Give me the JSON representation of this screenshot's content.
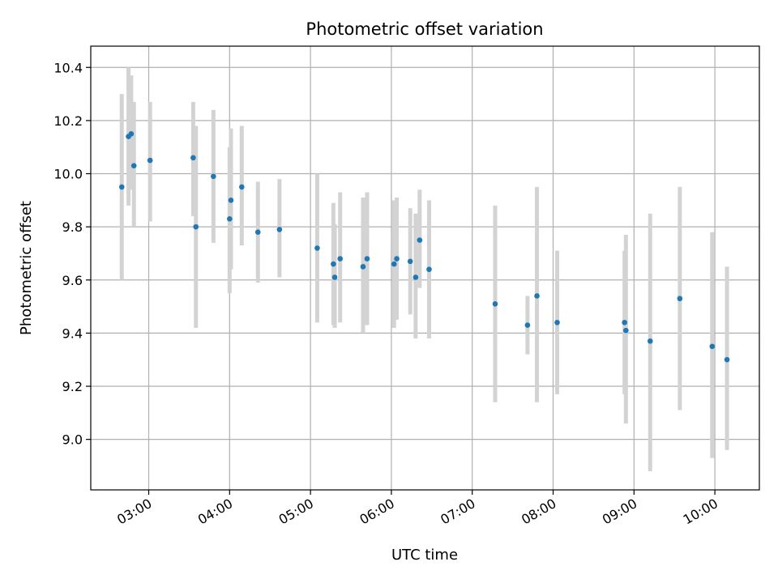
{
  "chart_data": {
    "type": "scatter",
    "title": "Photometric offset variation",
    "xlabel": "UTC time",
    "ylabel": "Photometric offset",
    "x_unit": "UTC time (HH:MM)",
    "xlim": [
      "02:17",
      "10:33"
    ],
    "ylim": [
      8.81,
      10.48
    ],
    "x_ticks": [
      "03:00",
      "04:00",
      "05:00",
      "06:00",
      "07:00",
      "08:00",
      "09:00",
      "10:00"
    ],
    "y_ticks": [
      "9.0",
      "9.2",
      "9.4",
      "9.6",
      "9.8",
      "10.0",
      "10.2",
      "10.4"
    ],
    "grid": true,
    "error_bars": true,
    "colors": {
      "points": "#1f77b4",
      "error_bars": "#d3d3d3",
      "grid": "#b0b0b0"
    },
    "points": [
      {
        "x": "02:40",
        "y": 9.95,
        "lo": 9.6,
        "hi": 10.3
      },
      {
        "x": "02:45",
        "y": 10.14,
        "lo": 9.88,
        "hi": 10.4
      },
      {
        "x": "02:47",
        "y": 10.15,
        "lo": 9.94,
        "hi": 10.37
      },
      {
        "x": "02:49",
        "y": 10.03,
        "lo": 9.8,
        "hi": 10.27
      },
      {
        "x": "03:01",
        "y": 10.05,
        "lo": 9.82,
        "hi": 10.27
      },
      {
        "x": "03:33",
        "y": 10.06,
        "lo": 9.84,
        "hi": 10.27
      },
      {
        "x": "03:35",
        "y": 9.8,
        "lo": 9.42,
        "hi": 10.18
      },
      {
        "x": "03:48",
        "y": 9.99,
        "lo": 9.74,
        "hi": 10.24
      },
      {
        "x": "04:00",
        "y": 9.83,
        "lo": 9.55,
        "hi": 10.1
      },
      {
        "x": "04:01",
        "y": 9.9,
        "lo": 9.64,
        "hi": 10.17
      },
      {
        "x": "04:09",
        "y": 9.95,
        "lo": 9.73,
        "hi": 10.18
      },
      {
        "x": "04:21",
        "y": 9.78,
        "lo": 9.59,
        "hi": 9.97
      },
      {
        "x": "04:37",
        "y": 9.79,
        "lo": 9.61,
        "hi": 9.98
      },
      {
        "x": "05:05",
        "y": 9.72,
        "lo": 9.44,
        "hi": 10.0
      },
      {
        "x": "05:17",
        "y": 9.66,
        "lo": 9.43,
        "hi": 9.89
      },
      {
        "x": "05:18",
        "y": 9.61,
        "lo": 9.42,
        "hi": 9.81
      },
      {
        "x": "05:22",
        "y": 9.68,
        "lo": 9.44,
        "hi": 9.93
      },
      {
        "x": "05:39",
        "y": 9.65,
        "lo": 9.4,
        "hi": 9.91
      },
      {
        "x": "05:42",
        "y": 9.68,
        "lo": 9.43,
        "hi": 9.93
      },
      {
        "x": "06:02",
        "y": 9.66,
        "lo": 9.42,
        "hi": 9.9
      },
      {
        "x": "06:04",
        "y": 9.68,
        "lo": 9.45,
        "hi": 9.91
      },
      {
        "x": "06:14",
        "y": 9.67,
        "lo": 9.47,
        "hi": 9.87
      },
      {
        "x": "06:18",
        "y": 9.61,
        "lo": 9.38,
        "hi": 9.85
      },
      {
        "x": "06:21",
        "y": 9.75,
        "lo": 9.57,
        "hi": 9.94
      },
      {
        "x": "06:28",
        "y": 9.64,
        "lo": 9.38,
        "hi": 9.9
      },
      {
        "x": "07:17",
        "y": 9.51,
        "lo": 9.14,
        "hi": 9.88
      },
      {
        "x": "07:41",
        "y": 9.43,
        "lo": 9.32,
        "hi": 9.54
      },
      {
        "x": "07:48",
        "y": 9.54,
        "lo": 9.14,
        "hi": 9.95
      },
      {
        "x": "08:03",
        "y": 9.44,
        "lo": 9.17,
        "hi": 9.71
      },
      {
        "x": "08:53",
        "y": 9.44,
        "lo": 9.17,
        "hi": 9.71
      },
      {
        "x": "08:54",
        "y": 9.41,
        "lo": 9.06,
        "hi": 9.77
      },
      {
        "x": "09:12",
        "y": 9.37,
        "lo": 8.88,
        "hi": 9.85
      },
      {
        "x": "09:34",
        "y": 9.53,
        "lo": 9.11,
        "hi": 9.95
      },
      {
        "x": "09:58",
        "y": 9.35,
        "lo": 8.93,
        "hi": 9.78
      },
      {
        "x": "10:09",
        "y": 9.3,
        "lo": 8.96,
        "hi": 9.65
      }
    ]
  }
}
